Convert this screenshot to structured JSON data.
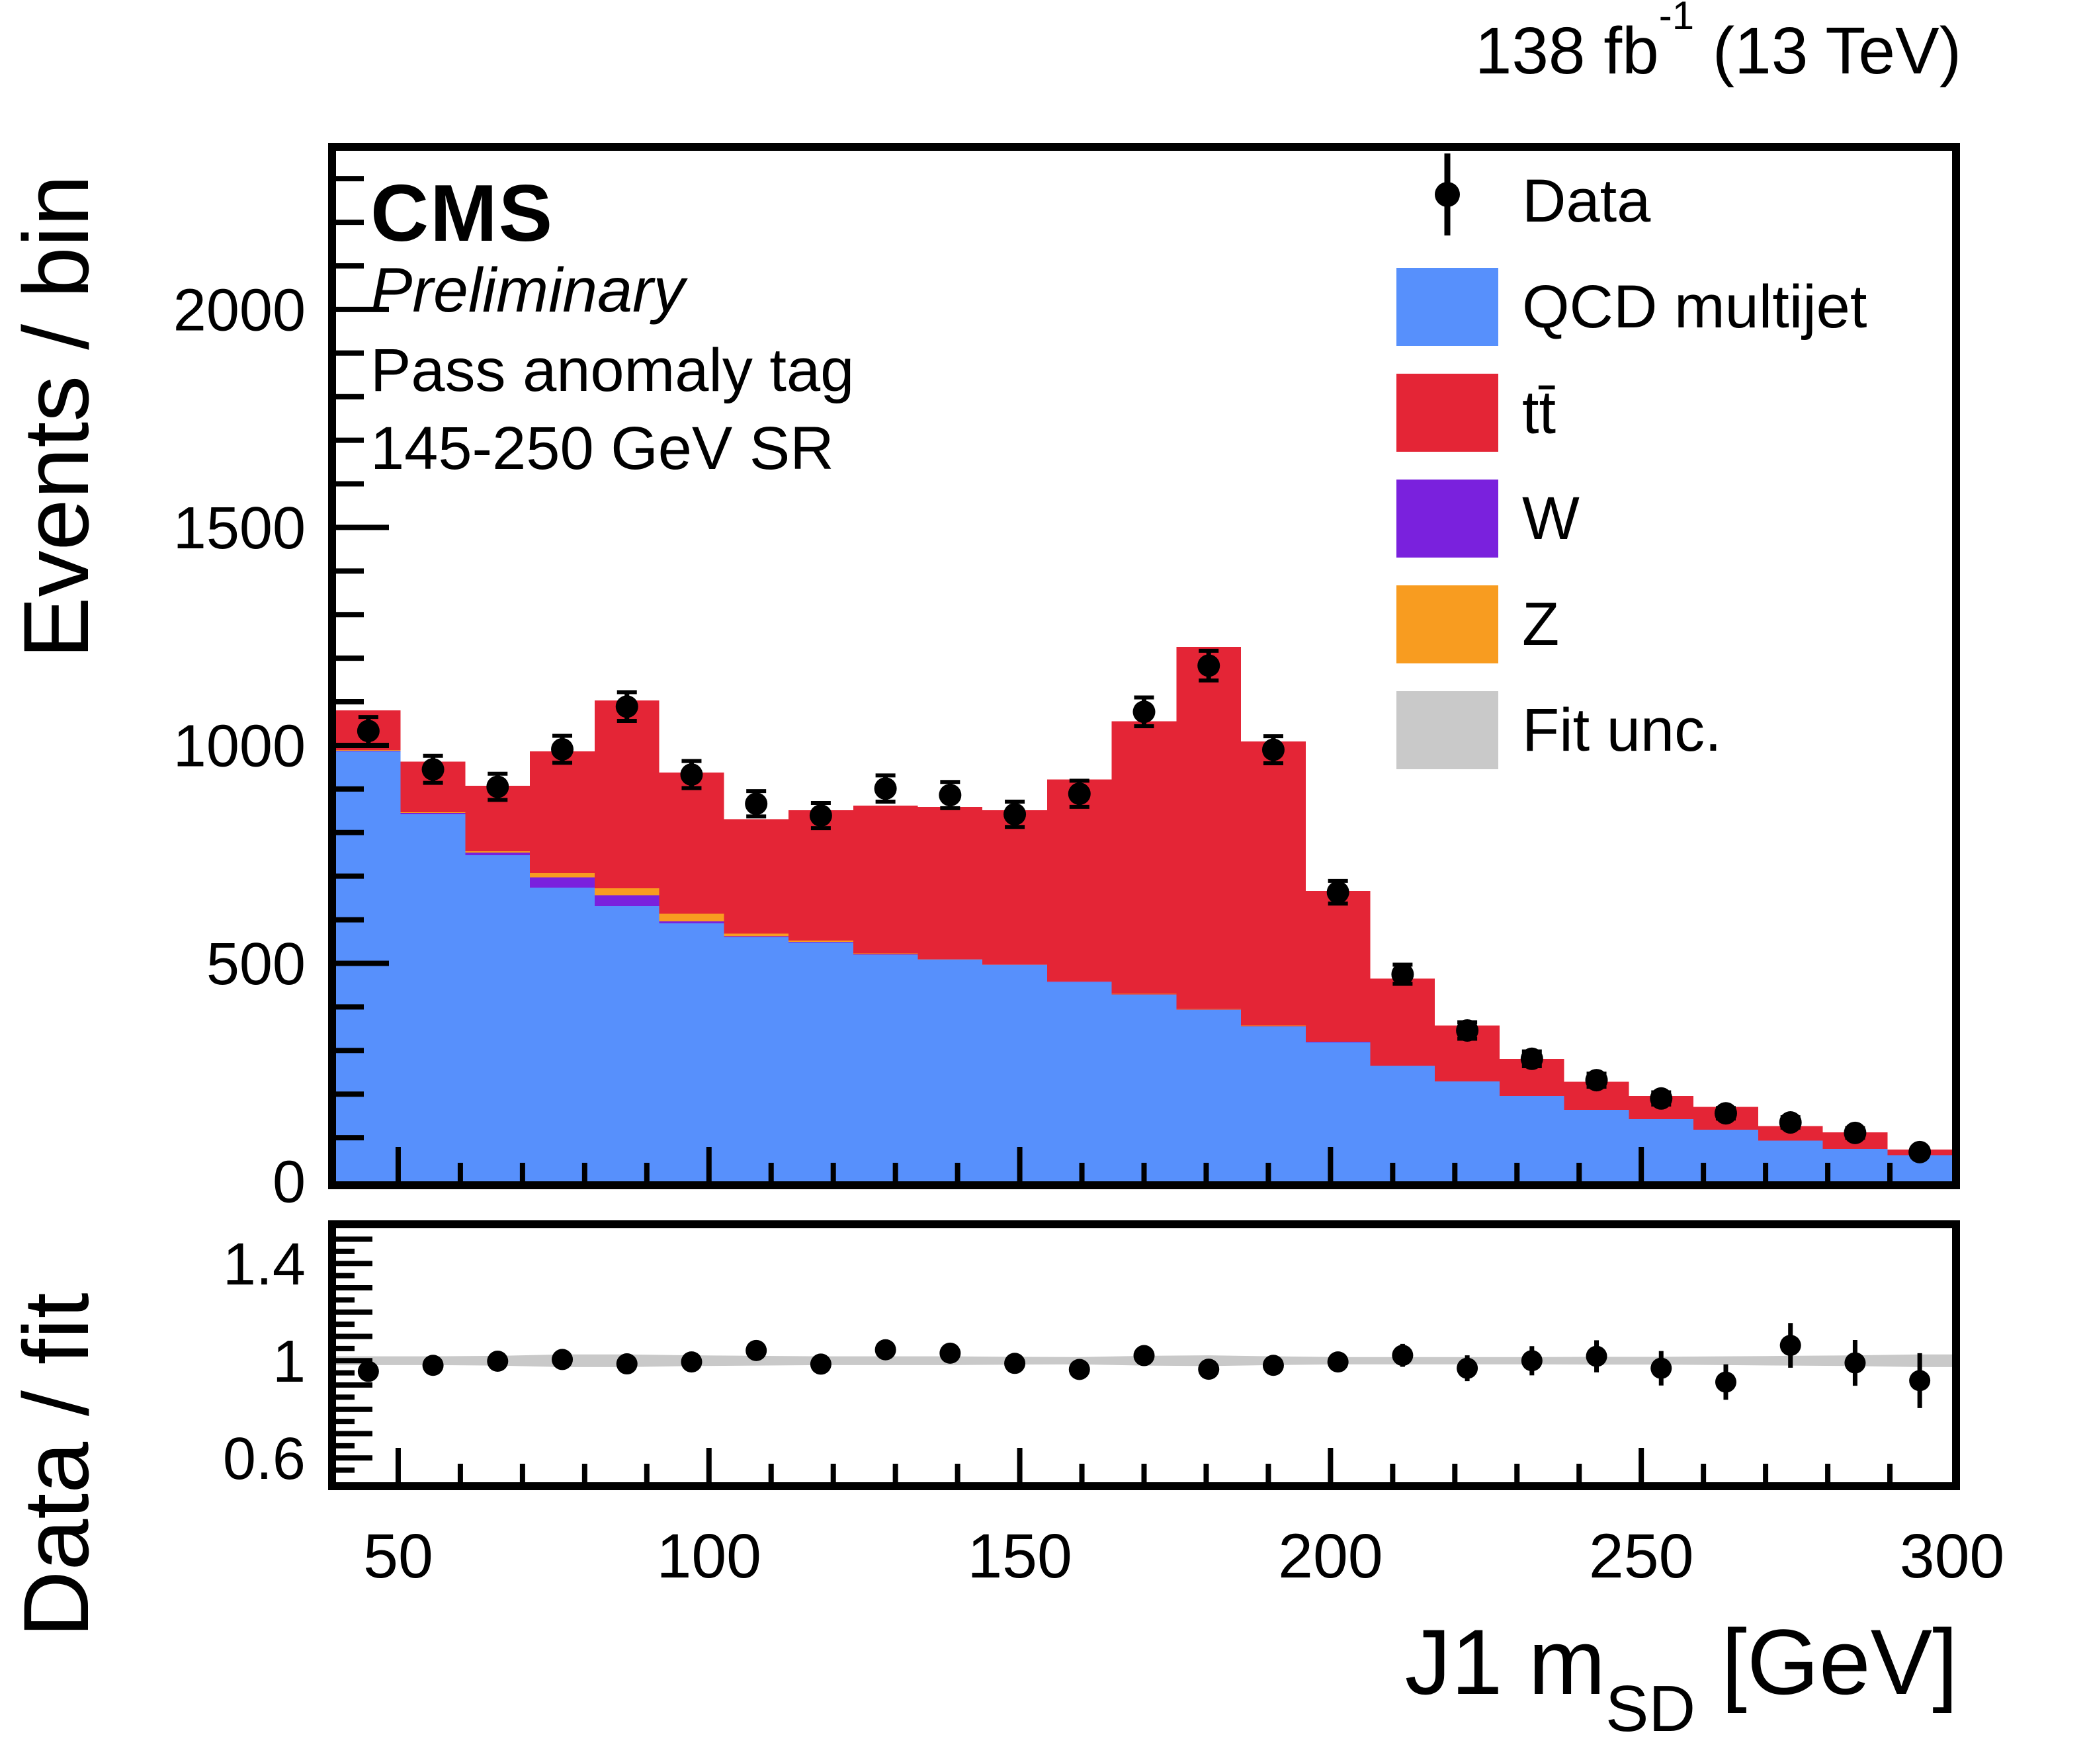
{
  "header": {
    "lumi_prefix": "138 fb",
    "lumi_sup": "-1",
    "lumi_suffix": " (13 TeV)"
  },
  "cms": {
    "label": "CMS",
    "sublabel": "Preliminary",
    "line1": "Pass anomaly tag",
    "line2": "145-250 GeV SR"
  },
  "legend": [
    {
      "id": "data",
      "label": "Data",
      "color": "#000000",
      "type": "marker"
    },
    {
      "id": "qcd",
      "label": "QCD multijet",
      "color": "#5790fc",
      "type": "fill"
    },
    {
      "id": "ttbar",
      "label": "tt̄",
      "color": "#e42536",
      "type": "fill"
    },
    {
      "id": "w",
      "label": "W",
      "color": "#7a21dd",
      "type": "fill"
    },
    {
      "id": "z",
      "label": "Z",
      "color": "#f89c20",
      "type": "fill"
    },
    {
      "id": "fit",
      "label": "Fit unc.",
      "color": "#c9c9c9",
      "type": "fill"
    }
  ],
  "axes": {
    "y_title": "Events / bin",
    "ratio_y_title": "Data / fit",
    "x_title_pre": "J1 m",
    "x_title_sub": "SD",
    "x_title_post": " [GeV]",
    "x_ticks": [
      50,
      100,
      150,
      200,
      250,
      300
    ],
    "x_tick_labels": [
      "50",
      "100",
      "150",
      "200",
      "250",
      "300"
    ],
    "x_minor_step": 10,
    "y_ticks": [
      0,
      500,
      1000,
      1500,
      2000
    ],
    "y_tick_labels": [
      "0",
      "500",
      "1000",
      "1500",
      "2000"
    ],
    "y_minor_step": 100,
    "ratio_ticks": [
      0.6,
      1,
      1.4
    ],
    "ratio_tick_labels": [
      "0.6",
      "1",
      "1.4"
    ],
    "ratio_minor_step": 0.05
  },
  "chart_data": {
    "type": "stacked_histogram_with_data_points_and_ratio",
    "title": "",
    "xlabel": "J1 mSD [GeV]",
    "ylabel": "Events / bin",
    "ratio_ylabel": "Data / fit",
    "xlim": [
      40,
      300
    ],
    "ylim": [
      0,
      2364
    ],
    "ratio_ylim": [
      0.5,
      1.545
    ],
    "bin_edges": [
      40,
      50.4,
      60.8,
      71.2,
      81.6,
      92,
      102.4,
      112.8,
      123.2,
      133.6,
      144,
      154.4,
      164.8,
      175.2,
      185.6,
      196,
      206.4,
      216.8,
      227.2,
      237.6,
      248,
      258.4,
      268.8,
      279.2,
      289.6,
      300
    ],
    "bin_centers": [
      45.2,
      55.6,
      66,
      76.4,
      86.8,
      97.2,
      107.6,
      118,
      128.4,
      138.8,
      149.2,
      159.6,
      170,
      180.4,
      190.8,
      201.2,
      211.6,
      222,
      232.4,
      242.8,
      253.2,
      263.6,
      274,
      284.4,
      294.8
    ],
    "series": [
      {
        "name": "QCD multijet",
        "color": "#5790fc",
        "values": [
          986,
          842,
          748,
          674,
          631,
          592,
          560,
          548,
          520,
          508,
          496,
          457,
          428,
          393,
          355,
          319,
          265,
          229,
          196,
          164,
          143,
          118,
          93,
          74,
          60
        ]
      },
      {
        "name": "W",
        "color": "#7a21dd",
        "values": [
          2,
          3,
          6,
          23,
          25,
          4,
          2,
          1,
          1,
          1,
          1,
          1,
          1,
          1,
          1,
          1,
          0,
          0,
          0,
          0,
          0,
          0,
          0,
          0,
          0
        ]
      },
      {
        "name": "Z",
        "color": "#f89c20",
        "values": [
          1,
          2,
          3,
          10,
          16,
          18,
          6,
          3,
          2,
          1,
          1,
          1,
          1,
          1,
          1,
          0,
          0,
          0,
          0,
          0,
          0,
          0,
          0,
          0,
          0
        ]
      },
      {
        "name": "tt̄",
        "color": "#e42536",
        "values": [
          91,
          116,
          150,
          279,
          431,
          324,
          263,
          299,
          339,
          349,
          353,
          463,
          625,
          831,
          652,
          346,
          200,
          128,
          85,
          64,
          53,
          53,
          34,
          38,
          13
        ]
      }
    ],
    "fit_totals": [
      1080,
      963,
      907,
      986,
      1103,
      938,
      831,
      851,
      862,
      859,
      851,
      922,
      1055,
      1226,
      1009,
      666,
      465,
      357,
      281,
      228,
      196,
      171,
      127,
      112,
      73
    ],
    "data_points": {
      "name": "Data",
      "color": "#000000",
      "values": [
        1033,
        945,
        905,
        991,
        1089,
        933,
        866,
        839,
        901,
        886,
        842,
        889,
        1077,
        1183,
        990,
        663,
        475,
        346,
        281,
        232,
        190,
        156,
        135,
        111,
        67
      ],
      "errors": [
        32,
        31,
        30,
        31,
        33,
        31,
        29,
        29,
        30,
        30,
        29,
        30,
        33,
        34,
        31,
        26,
        22,
        19,
        17,
        15,
        14,
        12,
        12,
        11,
        8
      ]
    },
    "ratio": {
      "values": [
        0.956,
        0.981,
        0.998,
        1.005,
        0.987,
        0.995,
        1.042,
        0.986,
        1.045,
        1.031,
        0.989,
        0.964,
        1.021,
        0.965,
        0.981,
        0.995,
        1.022,
        0.969,
        1.0,
        1.018,
        0.969,
        0.912,
        1.063,
        0.991,
        0.918
      ],
      "errors": [
        0.03,
        0.032,
        0.033,
        0.032,
        0.03,
        0.033,
        0.035,
        0.034,
        0.035,
        0.035,
        0.034,
        0.033,
        0.031,
        0.028,
        0.031,
        0.039,
        0.047,
        0.053,
        0.06,
        0.066,
        0.071,
        0.073,
        0.092,
        0.094,
        0.113
      ],
      "band_halfwidth": [
        0.018,
        0.018,
        0.02,
        0.026,
        0.026,
        0.022,
        0.02,
        0.018,
        0.018,
        0.018,
        0.016,
        0.015,
        0.02,
        0.022,
        0.018,
        0.015,
        0.015,
        0.015,
        0.015,
        0.016,
        0.016,
        0.018,
        0.02,
        0.022,
        0.026
      ],
      "band_color": "#c9c9c9"
    },
    "legend_position": "top-right",
    "grid": false
  }
}
